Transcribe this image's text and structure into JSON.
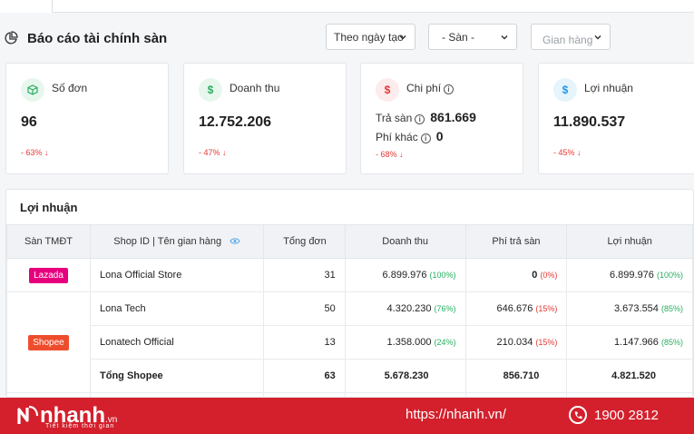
{
  "header": {
    "title": "Báo cáo tài chính sàn",
    "filters": [
      {
        "value": "Theo ngày tạo"
      },
      {
        "value": "- Sàn -"
      },
      {
        "value": "Gian hàng"
      }
    ]
  },
  "cards": [
    {
      "label": "Số đơn",
      "value": "96",
      "change": "- 63%"
    },
    {
      "label": "Doanh thu",
      "value": "12.752.206",
      "change": "- 47%"
    },
    {
      "label": "Chi phí",
      "fee_label": "Trả sàn",
      "fee_value": "861.669",
      "other_label": "Phí khác",
      "other_value": "0",
      "change": "- 68%"
    },
    {
      "label": "Lợi nhuận",
      "value": "11.890.537",
      "change": "- 45%"
    }
  ],
  "colors": {
    "lazada": "#e6007e",
    "shopee": "#ee4d2d",
    "footer": "#d3202c"
  },
  "table": {
    "title": "Lợi nhuận",
    "headers": [
      "Sàn TMĐT",
      "Shop ID | Tên gian hàng",
      "Tổng đơn",
      "Doanh thu",
      "Phí trả sàn",
      "Lợi nhuận"
    ],
    "rows": [
      {
        "platform": "Lazada",
        "shop": "Lona Official Store",
        "orders": "31",
        "revenue": "6.899.976",
        "revenue_pct": "(100%)",
        "fee": "0",
        "fee_pct": "(0%)",
        "profit": "6.899.976",
        "profit_pct": "(100%)"
      },
      {
        "platform": "Shopee",
        "shop": "Lona Tech",
        "orders": "50",
        "revenue": "4.320.230",
        "revenue_pct": "(76%)",
        "fee": "646.676",
        "fee_pct": "(15%)",
        "profit": "3.673.554",
        "profit_pct": "(85%)"
      },
      {
        "platform": "",
        "shop": "Lonatech Official",
        "orders": "13",
        "revenue": "1.358.000",
        "revenue_pct": "(24%)",
        "fee": "210.034",
        "fee_pct": "(15%)",
        "profit": "1.147.966",
        "profit_pct": "(85%)"
      }
    ],
    "total": {
      "label": "Tổng Shopee",
      "orders": "63",
      "revenue": "5.678.230",
      "fee": "856.710",
      "profit": "4.821.520"
    }
  },
  "footer": {
    "brand": "nhanh",
    "brand_suffix": ".vn",
    "slogan": "Tiết kiệm thời gian",
    "url": "https://nhanh.vn/",
    "phone": "1900 2812"
  }
}
